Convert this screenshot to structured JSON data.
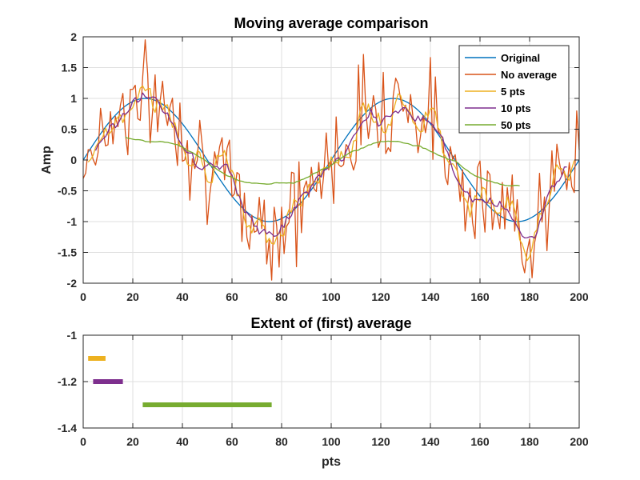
{
  "chart_data": [
    {
      "type": "line",
      "title": "Moving average comparison",
      "xlabel": "",
      "ylabel": "Amp",
      "xlim": [
        0,
        200
      ],
      "ylim": [
        -2,
        2
      ],
      "xticks": [
        0,
        20,
        40,
        60,
        80,
        100,
        120,
        140,
        160,
        180,
        200
      ],
      "yticks": [
        -2,
        -1.5,
        -1,
        -0.5,
        0,
        0.5,
        1,
        1.5,
        2
      ],
      "xtick_labels": [
        "0",
        "20",
        "40",
        "60",
        "80",
        "100",
        "120",
        "140",
        "160",
        "180",
        "200"
      ],
      "ytick_labels": [
        "-2",
        "-1.5",
        "-1",
        "-0.5",
        "0",
        "0.5",
        "1",
        "1.5",
        "2"
      ],
      "grid": true,
      "legend_position": "top-right",
      "signal": {
        "description_of_data": "sin(2*pi*x/100) sampled at x = 0..200",
        "period": 100,
        "amplitude": 1
      },
      "series": [
        {
          "name": "Original",
          "color": "#0072BD",
          "kind": "sine",
          "x_start": 0,
          "x_end": 200
        },
        {
          "name": "No average",
          "color": "#D95319",
          "kind": "noisy",
          "x_start": 0,
          "x_end": 200,
          "noise_amplitude": 0.45
        },
        {
          "name": " 5 pts",
          "color": "#EDB120",
          "kind": "moving_average",
          "window": 5,
          "x_start": 2,
          "x_end": 198
        },
        {
          "name": "10 pts",
          "color": "#7E2F8E",
          "kind": "moving_average",
          "window": 10,
          "x_start": 5,
          "x_end": 195
        },
        {
          "name": "50 pts",
          "color": "#77AC30",
          "kind": "moving_average",
          "window": 50,
          "x_start": 17,
          "x_end": 176,
          "scale": 0.62
        }
      ]
    },
    {
      "type": "bar",
      "title": "Extent of (first) average",
      "xlabel": "pts",
      "ylabel": "",
      "xlim": [
        0,
        200
      ],
      "ylim": [
        -1.4,
        -1
      ],
      "xticks": [
        0,
        20,
        40,
        60,
        80,
        100,
        120,
        140,
        160,
        180,
        200
      ],
      "yticks": [
        -1.4,
        -1.2,
        -1
      ],
      "xtick_labels": [
        "0",
        "20",
        "40",
        "60",
        "80",
        "100",
        "120",
        "140",
        "160",
        "180",
        "200"
      ],
      "ytick_labels": [
        "-1.4",
        "-1.2",
        "-1"
      ],
      "grid": true,
      "segments": [
        {
          "name": "5 pts",
          "color": "#EDB120",
          "x_start": 2,
          "x_end": 9,
          "y": -1.1
        },
        {
          "name": "10 pts",
          "color": "#7E2F8E",
          "x_start": 4,
          "x_end": 16,
          "y": -1.2
        },
        {
          "name": "50 pts",
          "color": "#77AC30",
          "x_start": 24,
          "x_end": 76,
          "y": -1.3
        }
      ]
    }
  ]
}
